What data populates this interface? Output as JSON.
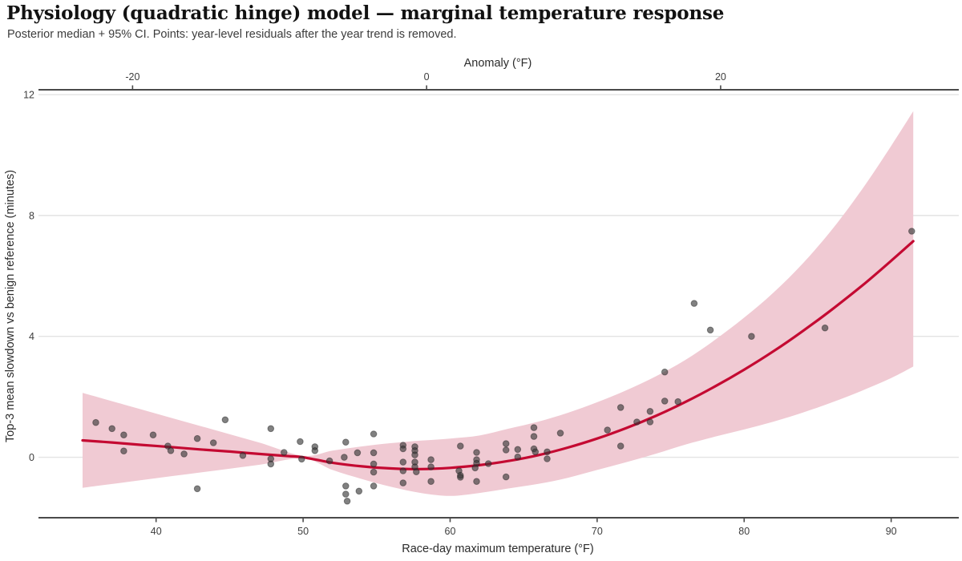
{
  "header": {
    "title": "Physiology (quadratic hinge) model — marginal temperature response",
    "subtitle": "Posterior median + 95% CI. Points: year-level residuals after the year trend is removed."
  },
  "colors": {
    "median_line": "#c40a32",
    "ci_ribbon": "#f0cad3",
    "points": "#333333",
    "point_stroke": "#1f1f1f",
    "gridline": "#e3e3e3",
    "axis_spine": "#4a4a4a",
    "tick_label": "#3d3d3d",
    "axis_title": "#2b2b2b"
  },
  "chart_data": {
    "type": "line",
    "title": "Physiology (quadratic hinge) model — marginal temperature response",
    "subtitle": "Posterior median + 95% CI. Points: year-level residuals after the year trend is removed.",
    "xlim": [
      32,
      94.6
    ],
    "ylim": [
      -2.0,
      12.16
    ],
    "grid": "horizontal-only",
    "x_axis_bottom": {
      "label": "Race-day maximum temperature (°F)",
      "tick_values": [
        40,
        50,
        60,
        70,
        80,
        90
      ],
      "tick_labels": [
        "40",
        "50",
        "60",
        "70",
        "80",
        "90"
      ]
    },
    "x_axis_top": {
      "label": "Anomaly (°F)",
      "tick_values": [
        -20,
        0,
        20
      ],
      "tick_labels": [
        "-20",
        "0",
        "20"
      ],
      "anomaly_zero_temp": 58.4
    },
    "y_axis": {
      "label": "Top-3 mean slowdown vs benign reference (minutes)",
      "tick_values": [
        0,
        4,
        8,
        12
      ],
      "tick_labels": [
        "0",
        "4",
        "8",
        "12"
      ]
    },
    "series": [
      {
        "name": "Posterior median",
        "kind": "smooth-line",
        "points": [
          [
            35,
            0.56
          ],
          [
            37,
            0.49
          ],
          [
            39,
            0.41
          ],
          [
            41,
            0.34
          ],
          [
            43,
            0.26
          ],
          [
            45,
            0.19
          ],
          [
            47,
            0.11
          ],
          [
            49,
            0.04
          ],
          [
            50,
            0.0
          ],
          [
            52,
            -0.18
          ],
          [
            54,
            -0.3
          ],
          [
            56,
            -0.37
          ],
          [
            58,
            -0.39
          ],
          [
            60,
            -0.35
          ],
          [
            62,
            -0.26
          ],
          [
            64,
            -0.12
          ],
          [
            66,
            0.07
          ],
          [
            68,
            0.32
          ],
          [
            70,
            0.62
          ],
          [
            72,
            0.97
          ],
          [
            74,
            1.37
          ],
          [
            76,
            1.83
          ],
          [
            78,
            2.34
          ],
          [
            80,
            2.9
          ],
          [
            82,
            3.51
          ],
          [
            84,
            4.18
          ],
          [
            86,
            4.9
          ],
          [
            88,
            5.67
          ],
          [
            90,
            6.5
          ],
          [
            91.5,
            7.15
          ]
        ]
      },
      {
        "name": "95% credible interval",
        "kind": "ribbon",
        "points_t_lo_hi": [
          [
            35,
            -1.01,
            2.13
          ],
          [
            38,
            -0.82,
            1.72
          ],
          [
            41,
            -0.63,
            1.31
          ],
          [
            44,
            -0.44,
            0.9
          ],
          [
            47,
            -0.25,
            0.49
          ],
          [
            50,
            -0.04,
            0.05
          ],
          [
            52,
            -0.42,
            0.22
          ],
          [
            54,
            -0.72,
            0.36
          ],
          [
            56,
            -0.98,
            0.47
          ],
          [
            58,
            -1.18,
            0.55
          ],
          [
            60,
            -1.28,
            0.62
          ],
          [
            62,
            -1.18,
            0.72
          ],
          [
            64,
            -1.03,
            0.95
          ],
          [
            66,
            -0.88,
            1.18
          ],
          [
            68,
            -0.68,
            1.47
          ],
          [
            70,
            -0.42,
            1.82
          ],
          [
            72,
            -0.16,
            2.22
          ],
          [
            74,
            0.12,
            2.68
          ],
          [
            76,
            0.42,
            3.22
          ],
          [
            78,
            0.68,
            3.88
          ],
          [
            80,
            0.92,
            4.62
          ],
          [
            82,
            1.18,
            5.45
          ],
          [
            84,
            1.48,
            6.42
          ],
          [
            86,
            1.82,
            7.55
          ],
          [
            88,
            2.2,
            8.85
          ],
          [
            90,
            2.62,
            10.3
          ],
          [
            91.5,
            3.0,
            11.45
          ]
        ]
      },
      {
        "name": "Year-level residuals",
        "kind": "scatter",
        "points": [
          [
            35.9,
            1.15
          ],
          [
            37.0,
            0.95
          ],
          [
            37.8,
            0.74
          ],
          [
            37.8,
            0.21
          ],
          [
            39.8,
            0.74
          ],
          [
            40.8,
            0.37
          ],
          [
            41.0,
            0.22
          ],
          [
            41.9,
            0.11
          ],
          [
            42.8,
            0.62
          ],
          [
            42.8,
            -1.04
          ],
          [
            43.9,
            0.48
          ],
          [
            44.7,
            1.24
          ],
          [
            45.9,
            0.06
          ],
          [
            47.8,
            0.95
          ],
          [
            47.8,
            -0.05
          ],
          [
            47.8,
            -0.22
          ],
          [
            48.7,
            0.16
          ],
          [
            49.8,
            0.52
          ],
          [
            49.9,
            -0.06
          ],
          [
            50.8,
            0.35
          ],
          [
            50.8,
            0.22
          ],
          [
            51.8,
            -0.12
          ],
          [
            52.9,
            0.5
          ],
          [
            52.8,
            0.0
          ],
          [
            52.9,
            -0.95
          ],
          [
            52.9,
            -1.22
          ],
          [
            53.0,
            -1.45
          ],
          [
            53.7,
            0.15
          ],
          [
            53.8,
            -1.12
          ],
          [
            54.8,
            0.77
          ],
          [
            54.8,
            0.15
          ],
          [
            54.8,
            -0.22
          ],
          [
            54.8,
            -0.49
          ],
          [
            54.8,
            -0.95
          ],
          [
            56.8,
            0.4
          ],
          [
            56.8,
            0.28
          ],
          [
            56.8,
            -0.16
          ],
          [
            56.8,
            -0.45
          ],
          [
            56.8,
            -0.85
          ],
          [
            57.6,
            0.35
          ],
          [
            57.6,
            0.22
          ],
          [
            57.6,
            0.08
          ],
          [
            57.6,
            -0.16
          ],
          [
            57.6,
            -0.32
          ],
          [
            57.7,
            -0.48
          ],
          [
            58.7,
            -0.08
          ],
          [
            58.7,
            -0.32
          ],
          [
            58.7,
            -0.8
          ],
          [
            60.7,
            0.37
          ],
          [
            60.6,
            -0.45
          ],
          [
            60.7,
            -0.6
          ],
          [
            60.7,
            -0.66
          ],
          [
            61.8,
            0.16
          ],
          [
            61.8,
            -0.08
          ],
          [
            61.8,
            -0.2
          ],
          [
            61.7,
            -0.35
          ],
          [
            61.8,
            -0.8
          ],
          [
            62.6,
            -0.21
          ],
          [
            63.8,
            0.45
          ],
          [
            63.8,
            0.24
          ],
          [
            63.8,
            -0.65
          ],
          [
            64.6,
            0.26
          ],
          [
            64.6,
            0.01
          ],
          [
            65.7,
            0.98
          ],
          [
            65.7,
            0.69
          ],
          [
            65.7,
            0.28
          ],
          [
            65.8,
            0.18
          ],
          [
            66.6,
            0.18
          ],
          [
            66.6,
            -0.05
          ],
          [
            67.5,
            0.8
          ],
          [
            70.7,
            0.9
          ],
          [
            71.6,
            1.65
          ],
          [
            71.6,
            0.37
          ],
          [
            72.7,
            1.17
          ],
          [
            73.6,
            1.52
          ],
          [
            73.6,
            1.17
          ],
          [
            74.6,
            2.82
          ],
          [
            74.6,
            1.86
          ],
          [
            75.5,
            1.84
          ],
          [
            76.6,
            5.09
          ],
          [
            77.7,
            4.21
          ],
          [
            80.5,
            4.0
          ],
          [
            85.5,
            4.28
          ],
          [
            91.4,
            7.48
          ]
        ]
      }
    ]
  }
}
